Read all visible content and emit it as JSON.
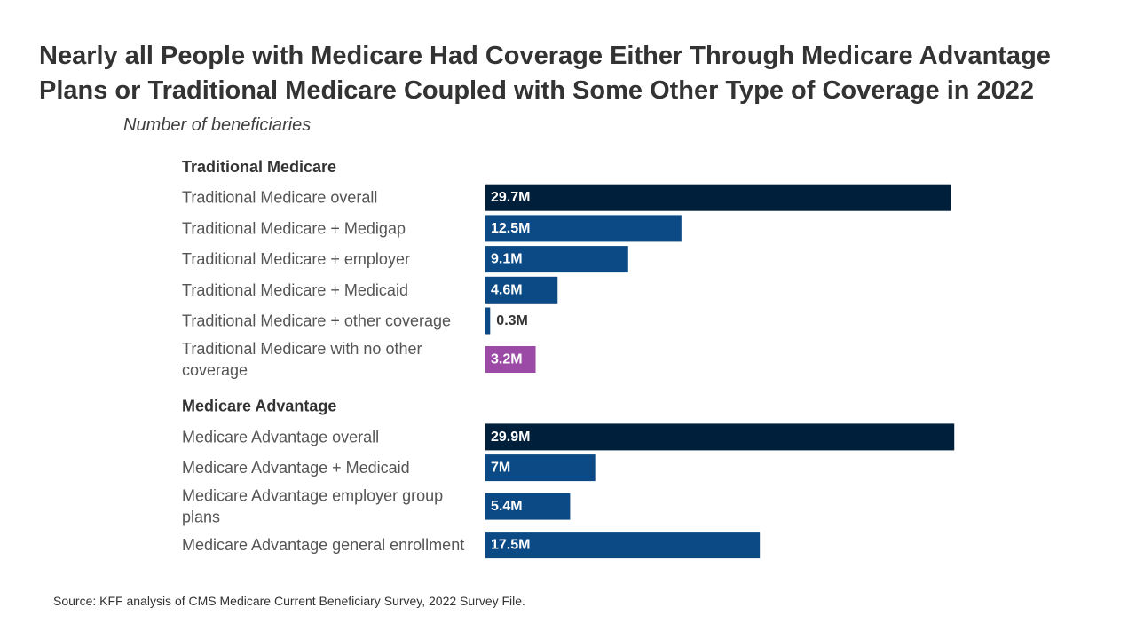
{
  "title": "Nearly all People with Medicare Had Coverage Either Through Medicare Advantage Plans or Traditional Medicare Coupled with Some Other Type of Coverage in 2022",
  "subtitle": "Number of beneficiaries",
  "source": "Source: KFF analysis of CMS Medicare Current Beneficiary Survey, 2022 Survey File.",
  "colors": {
    "overall": "#001f3a",
    "subgroup": "#0b4a84",
    "no_other": "#9b4aa6",
    "label_text": "#555555",
    "group_text": "#333333"
  },
  "chart_data": {
    "type": "bar",
    "orientation": "horizontal",
    "title": "Nearly all People with Medicare Had Coverage Either Through Medicare Advantage Plans or Traditional Medicare Coupled with Some Other Type of Coverage in 2022",
    "xlabel": "Number of beneficiaries",
    "units": "millions",
    "xlim": [
      0,
      30
    ],
    "groups": [
      {
        "name": "Traditional Medicare",
        "items": [
          {
            "label": "Traditional Medicare overall",
            "lines": [
              "Traditional Medicare overall"
            ],
            "value": 29.7,
            "display": "29.7M",
            "kind": "overall"
          },
          {
            "label": "Traditional Medicare + Medigap",
            "lines": [
              "Traditional Medicare + Medigap"
            ],
            "value": 12.5,
            "display": "12.5M",
            "kind": "subgroup"
          },
          {
            "label": "Traditional Medicare + employer",
            "lines": [
              "Traditional Medicare + employer"
            ],
            "value": 9.1,
            "display": "9.1M",
            "kind": "subgroup"
          },
          {
            "label": "Traditional Medicare + Medicaid",
            "lines": [
              "Traditional Medicare + Medicaid"
            ],
            "value": 4.6,
            "display": "4.6M",
            "kind": "subgroup"
          },
          {
            "label": "Traditional Medicare + other coverage",
            "lines": [
              "Traditional Medicare + other coverage"
            ],
            "value": 0.3,
            "display": "0.3M",
            "kind": "subgroup"
          },
          {
            "label": "Traditional Medicare with no other coverage",
            "lines": [
              "Traditional Medicare with no other",
              "coverage"
            ],
            "value": 3.2,
            "display": "3.2M",
            "kind": "no_other"
          }
        ]
      },
      {
        "name": "Medicare Advantage",
        "items": [
          {
            "label": "Medicare Advantage overall",
            "lines": [
              "Medicare Advantage overall"
            ],
            "value": 29.9,
            "display": "29.9M",
            "kind": "overall"
          },
          {
            "label": "Medicare Advantage + Medicaid",
            "lines": [
              "Medicare Advantage + Medicaid"
            ],
            "value": 7,
            "display": "7M",
            "kind": "subgroup"
          },
          {
            "label": "Medicare Advantage employer group plans",
            "lines": [
              "Medicare Advantage employer group",
              "plans"
            ],
            "value": 5.4,
            "display": "5.4M",
            "kind": "subgroup"
          },
          {
            "label": "Medicare Advantage general enrollment",
            "lines": [
              "Medicare Advantage general enrollment"
            ],
            "value": 17.5,
            "display": "17.5M",
            "kind": "subgroup"
          }
        ]
      }
    ]
  }
}
